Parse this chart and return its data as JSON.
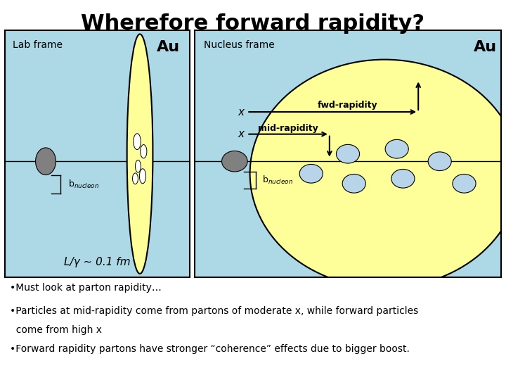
{
  "title": "Wherefore forward rapidity?",
  "title_fontsize": 22,
  "bg_color": "#add8e6",
  "yellow_color": "#ffff99",
  "gray_color": "#808080",
  "parton_color": "#b8d4e8",
  "left_label": "Lab frame",
  "left_Au": "Au",
  "right_label": "Nucleus frame",
  "right_Au": "Au",
  "Lgamma": "L/γ ~ 0.1 fm",
  "fwd_label": "fwd-rapidity",
  "mid_label": "mid-rapidity",
  "bullet1": "•Must look at parton rapidity…",
  "bullet2a": "•Particles at mid-rapidity come from partons of moderate x, while forward particles",
  "bullet2b": "  come from high x",
  "bullet3": "•Forward rapidity partons have stronger “coherence” effects due to bigger boost."
}
